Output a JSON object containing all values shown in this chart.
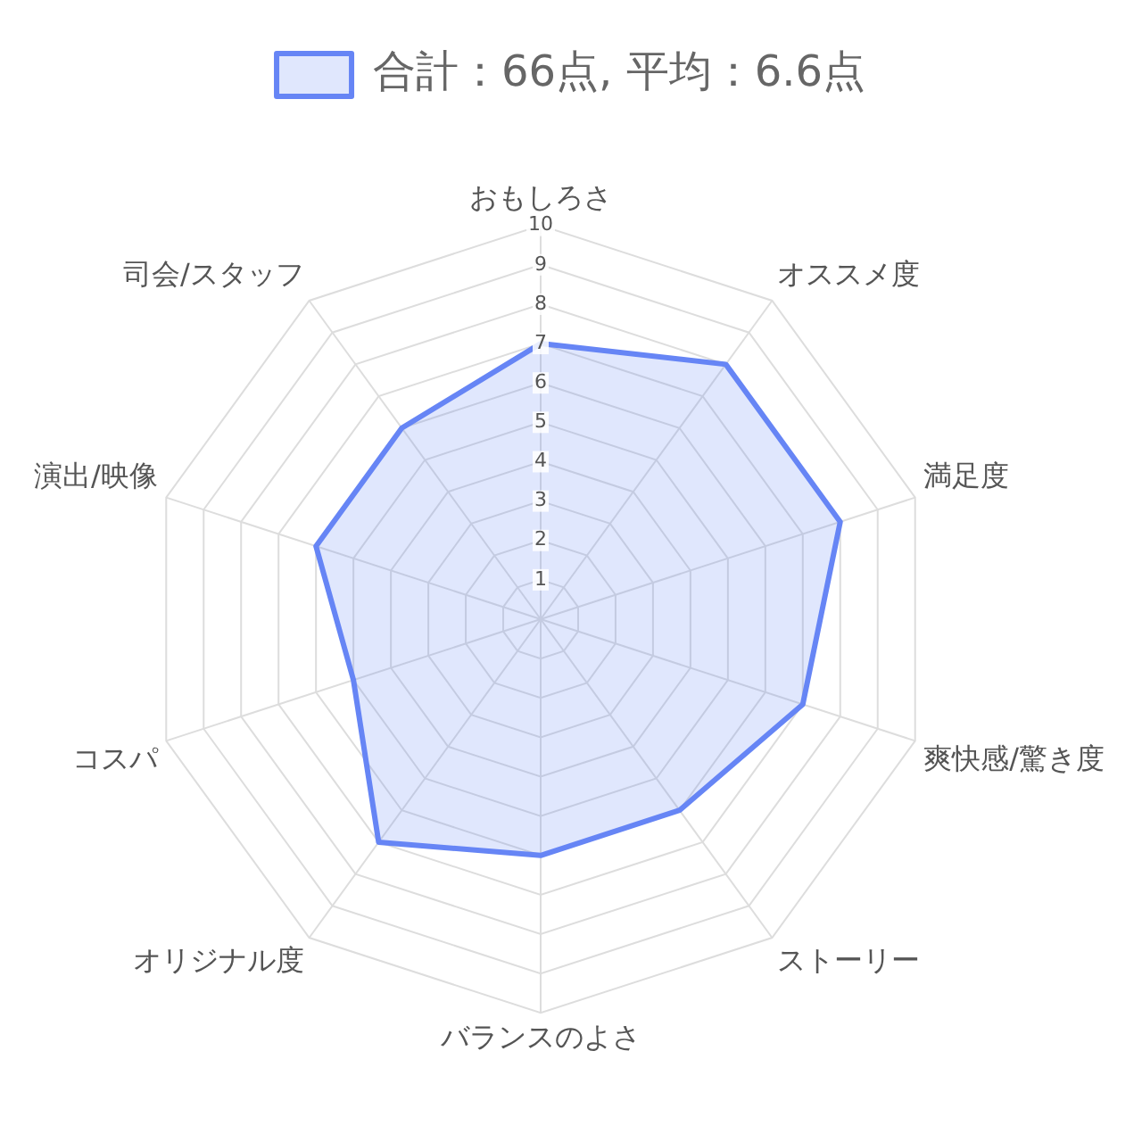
{
  "chart_data": {
    "type": "radar",
    "categories": [
      "おもしろさ",
      "オススメ度",
      "満足度",
      "爽快感/驚き度",
      "ストーリー",
      "バランスのよさ",
      "オリジナル度",
      "コスパ",
      "演出/映像",
      "司会/スタッフ"
    ],
    "series": [
      {
        "name": "合計：66点, 平均：6.6点",
        "color": "#6685f5",
        "values": [
          7,
          8,
          8,
          7,
          6,
          6,
          7,
          5,
          6,
          6
        ]
      }
    ],
    "ylim": [
      0,
      10
    ],
    "yticks": [
      1,
      2,
      3,
      4,
      5,
      6,
      7,
      8,
      9,
      10
    ],
    "grid": true,
    "legend": "top",
    "marker": "none"
  }
}
